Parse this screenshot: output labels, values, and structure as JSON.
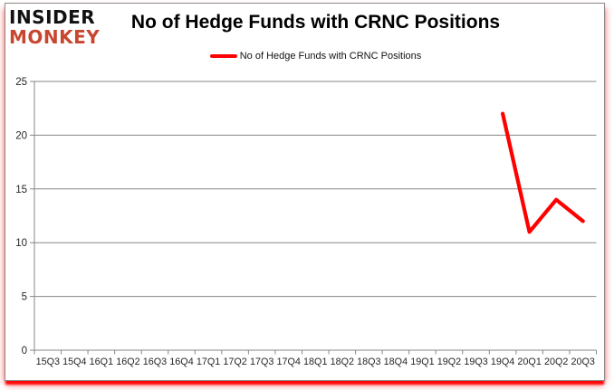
{
  "header": {
    "logo": {
      "line1": "INSIDER",
      "line2": "MONKEY"
    },
    "title": "No of Hedge Funds with CRNC Positions"
  },
  "legend": {
    "label": "No of Hedge Funds with CRNC Positions",
    "swatch_color": "#FF0000"
  },
  "colors": {
    "series_line": "#FF0000",
    "gridline": "#878787",
    "frame_border": "#8C8C8C",
    "axis_text": "#262626",
    "logo_black": "#111111",
    "logo_red": "#C8462F",
    "bottom_border_glow": "#FF0000"
  },
  "chart_data": {
    "type": "line",
    "title": "No of Hedge Funds with CRNC Positions",
    "categories": [
      "15Q3",
      "15Q4",
      "16Q1",
      "16Q2",
      "16Q3",
      "16Q4",
      "17Q1",
      "17Q2",
      "17Q3",
      "17Q4",
      "18Q1",
      "18Q2",
      "18Q3",
      "18Q4",
      "19Q1",
      "19Q2",
      "19Q3",
      "19Q4",
      "20Q1",
      "20Q2",
      "20Q3"
    ],
    "series": [
      {
        "name": "No of Hedge Funds with CRNC Positions",
        "color": "#FF0000",
        "values": [
          null,
          null,
          null,
          null,
          null,
          null,
          null,
          null,
          null,
          null,
          null,
          null,
          null,
          null,
          null,
          null,
          null,
          22,
          11,
          14,
          12
        ]
      }
    ],
    "xlabel": "",
    "ylabel": "",
    "ylim": [
      0,
      25
    ],
    "yticks": [
      0,
      5,
      10,
      15,
      20,
      25
    ],
    "grid": true,
    "legend_position": "top"
  }
}
